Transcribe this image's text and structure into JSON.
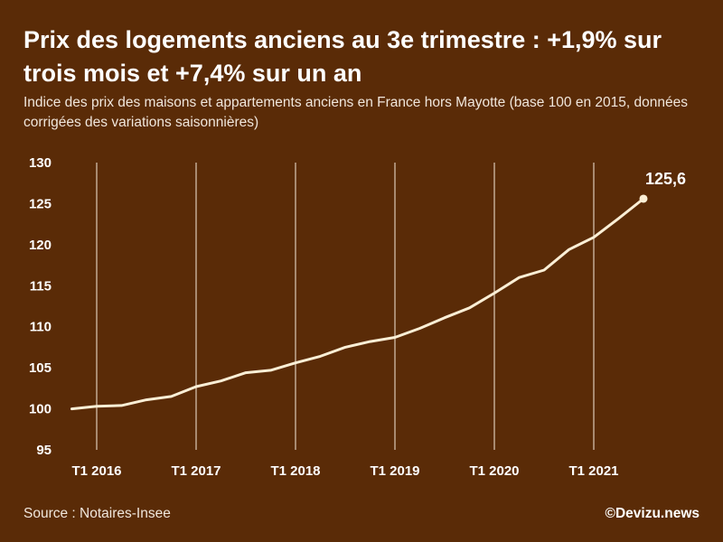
{
  "header": {
    "title": "Prix des logements anciens au 3e trimestre : +1,9% sur trois mois et +7,4% sur un an",
    "subtitle": "Indice des prix des maisons et appartements anciens en France hors Mayotte (base 100 en 2015, données corrigées des variations saisonnières)"
  },
  "footer": {
    "source": "Source : Notaires-Insee",
    "credit": "©Devizu.news"
  },
  "colors": {
    "background": "#5a2b07",
    "line": "#fbefd6",
    "grid": "#f3e6d6",
    "text": "#ffffff"
  },
  "chart_data": {
    "type": "line",
    "title": "",
    "xlabel": "",
    "ylabel": "",
    "ylim": [
      95,
      130
    ],
    "yticks": [
      95,
      100,
      105,
      110,
      115,
      120,
      125,
      130
    ],
    "xtick_labels": [
      "T1 2016",
      "T1 2017",
      "T1 2018",
      "T1 2019",
      "T1 2020",
      "T1 2021"
    ],
    "grid": "vertical",
    "x": [
      "T4 2015",
      "T1 2016",
      "T2 2016",
      "T3 2016",
      "T4 2016",
      "T1 2017",
      "T2 2017",
      "T3 2017",
      "T4 2017",
      "T1 2018",
      "T2 2018",
      "T3 2018",
      "T4 2018",
      "T1 2019",
      "T2 2019",
      "T3 2019",
      "T4 2019",
      "T1 2020",
      "T2 2020",
      "T3 2020",
      "T4 2020",
      "T1 2021",
      "T2 2021",
      "T3 2021"
    ],
    "series": [
      {
        "values": [
          100.0,
          100.3,
          100.4,
          101.1,
          101.5,
          102.7,
          103.4,
          104.4,
          104.7,
          105.6,
          106.4,
          107.5,
          108.2,
          108.7,
          109.8,
          111.1,
          112.3,
          114.1,
          116.0,
          116.9,
          119.4,
          120.9,
          123.2,
          125.6
        ]
      }
    ],
    "end_label": "125,6"
  }
}
